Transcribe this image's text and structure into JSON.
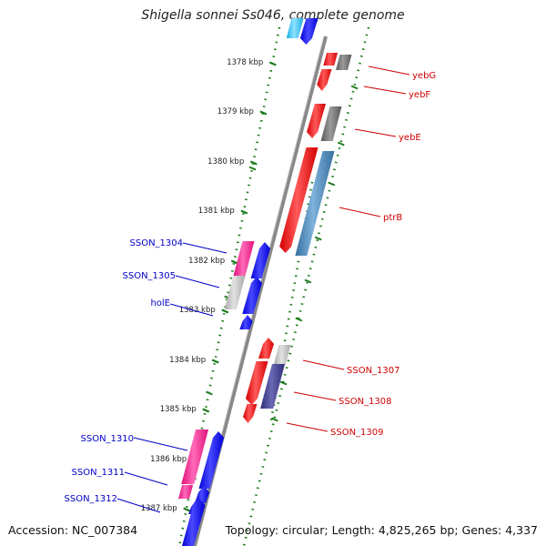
{
  "title": "Shigella sonnei Ss046, complete genome",
  "footer": {
    "accession": "Accession: NC_007384",
    "summary": "Topology: circular; Length: 4,825,265 bp; Genes: 4,337"
  },
  "colors": {
    "backbone": "#888888",
    "ruler_tick": "#1a7a1a",
    "forward_label": "#d10000",
    "reverse_label": "#0000c8",
    "forward_gene": "#ff0000",
    "reverse_gene": "#0000ff",
    "pink_gene": "#ff1a8c",
    "gray_gene": "#7a7a7a",
    "lightgray_gene": "#bdbdbd",
    "steelblue_gene": "#4a86b8",
    "navy_gene": "#3a3a8c",
    "cyan_gene": "#33c4f0"
  },
  "ruler": [
    {
      "label": "1378 kbp"
    },
    {
      "label": "1379 kbp"
    },
    {
      "label": "1380 kbp"
    },
    {
      "label": "1381 kbp"
    },
    {
      "label": "1382 kbp"
    },
    {
      "label": "1383 kbp"
    },
    {
      "label": "1384 kbp"
    },
    {
      "label": "1385 kbp"
    },
    {
      "label": "1386 kbp"
    },
    {
      "label": "1387 kbp"
    }
  ],
  "forward_genes": [
    {
      "label": "yebG",
      "color": "forward_gene"
    },
    {
      "label": "yebF",
      "color": "forward_gene"
    },
    {
      "label": "yebE",
      "color": "forward_gene"
    },
    {
      "label": "ptrB",
      "color": "forward_gene"
    },
    {
      "label": "SSON_1307",
      "color": "forward_gene"
    },
    {
      "label": "SSON_1308",
      "color": "forward_gene"
    },
    {
      "label": "SSON_1309",
      "color": "forward_gene"
    }
  ],
  "reverse_genes": [
    {
      "label": "SSON_1304",
      "color": "reverse_gene"
    },
    {
      "label": "SSON_1305",
      "color": "reverse_gene"
    },
    {
      "label": "holE",
      "color": "reverse_gene"
    },
    {
      "label": "SSON_1310",
      "color": "reverse_gene"
    },
    {
      "label": "SSON_1311",
      "color": "reverse_gene"
    },
    {
      "label": "SSON_1312",
      "color": "reverse_gene"
    }
  ]
}
